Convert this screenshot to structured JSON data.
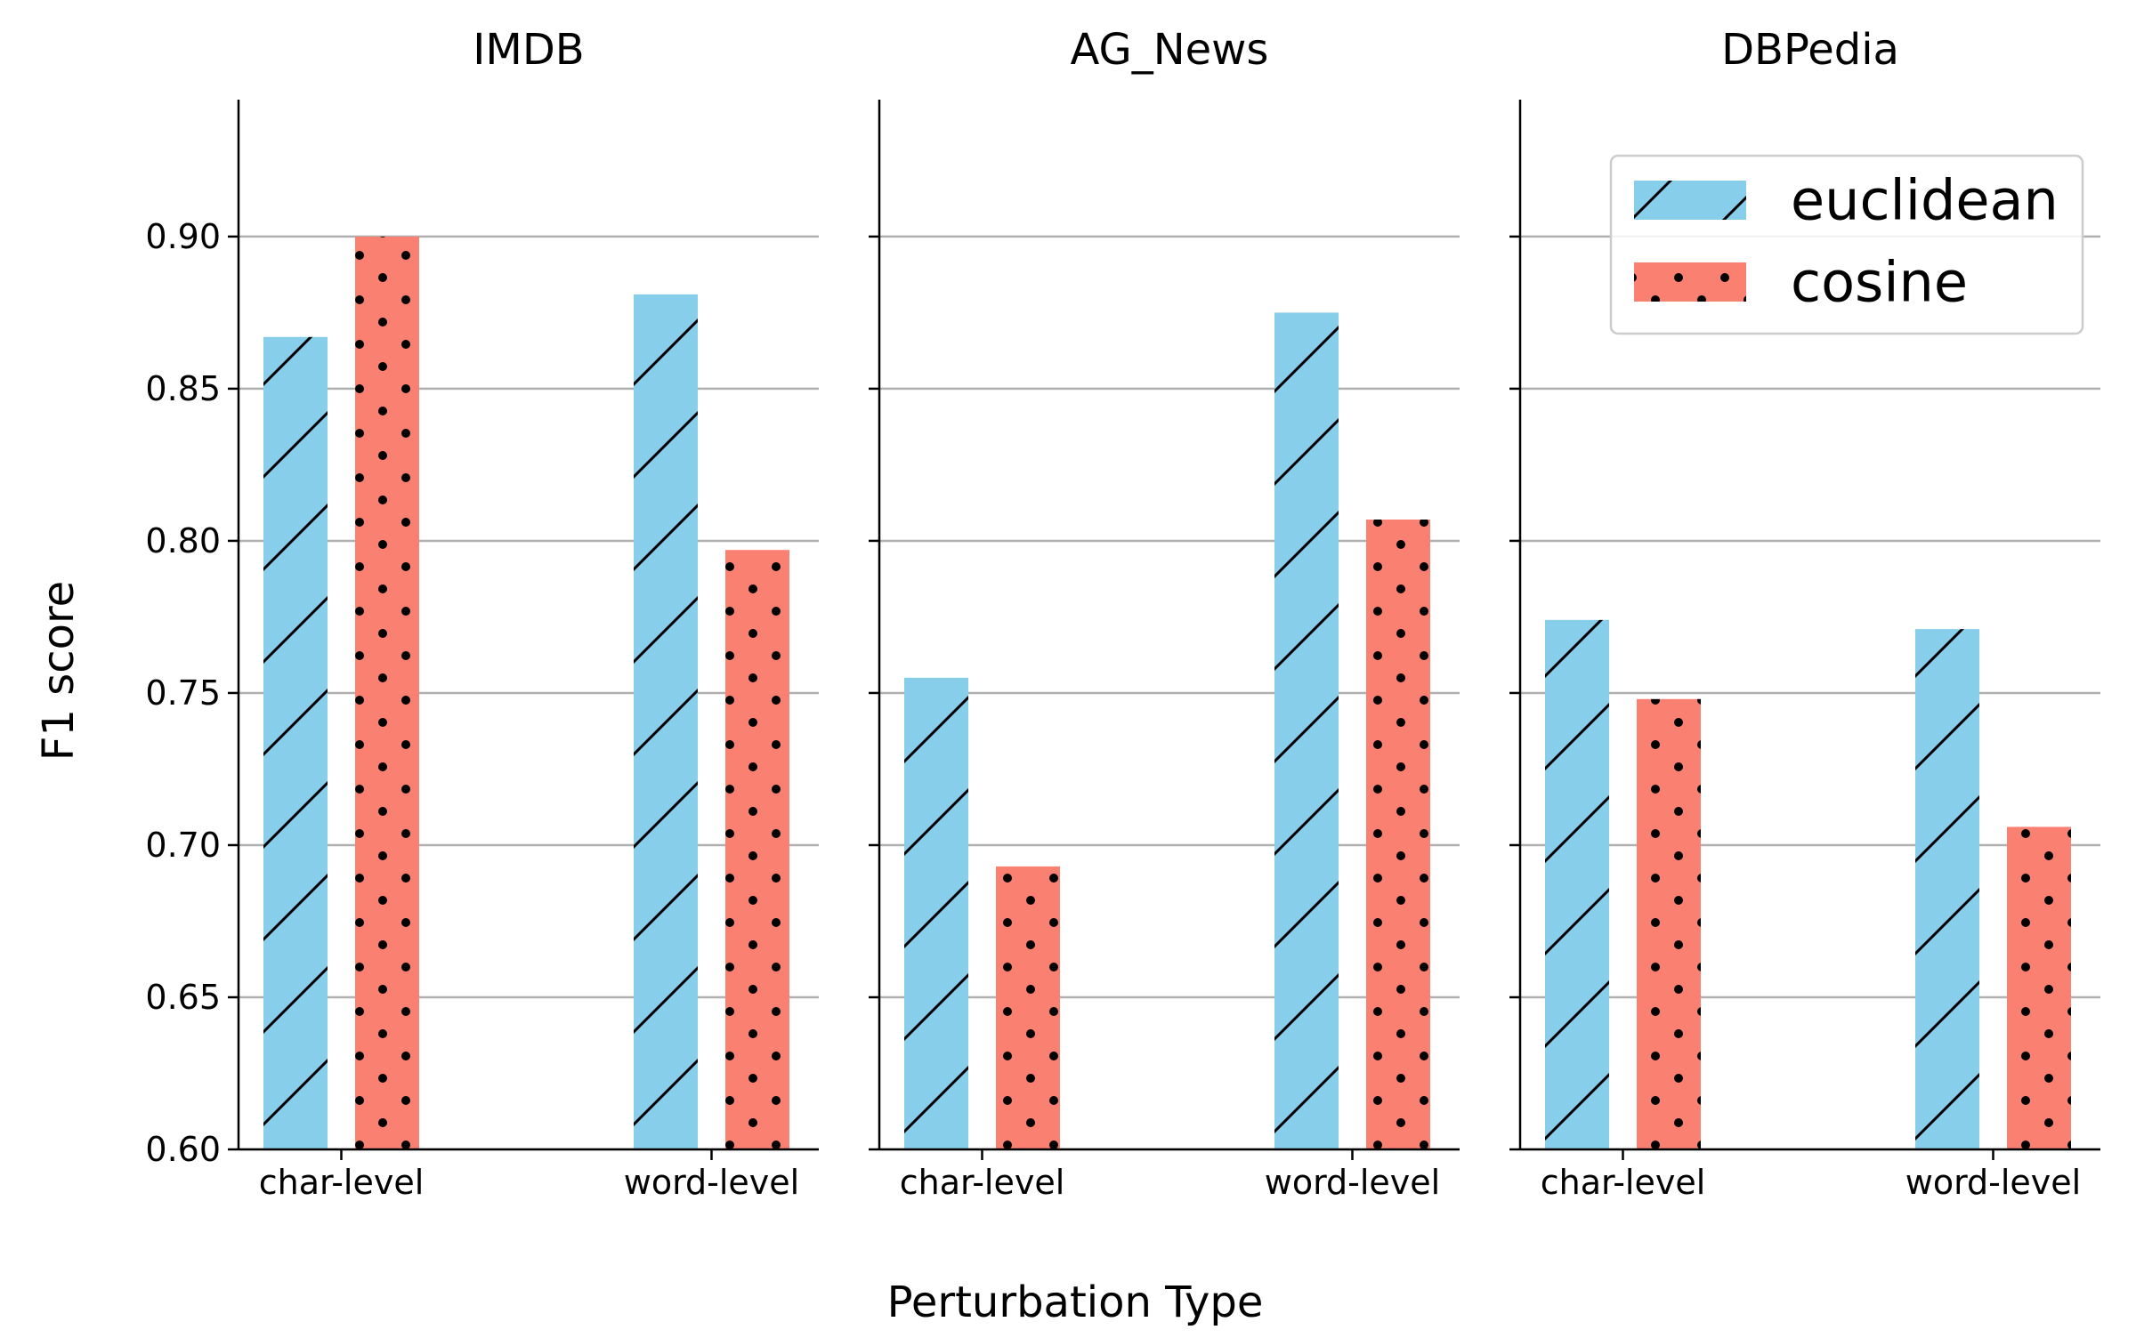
{
  "chart_data": {
    "type": "bar",
    "panels": [
      {
        "title": "IMDB",
        "categories": [
          "char-level",
          "word-level"
        ],
        "series": [
          {
            "name": "euclidean",
            "values": [
              0.867,
              0.881
            ]
          },
          {
            "name": "cosine",
            "values": [
              0.9,
              0.797
            ]
          }
        ]
      },
      {
        "title": "AG_News",
        "categories": [
          "char-level",
          "word-level"
        ],
        "series": [
          {
            "name": "euclidean",
            "values": [
              0.755,
              0.875
            ]
          },
          {
            "name": "cosine",
            "values": [
              0.693,
              0.807
            ]
          }
        ]
      },
      {
        "title": "DBPedia",
        "categories": [
          "char-level",
          "word-level"
        ],
        "series": [
          {
            "name": "euclidean",
            "values": [
              0.774,
              0.771
            ]
          },
          {
            "name": "cosine",
            "values": [
              0.748,
              0.706
            ]
          }
        ]
      }
    ],
    "ylabel": "F1 score",
    "xlabel": "Perturbation Type",
    "ylim": [
      0.6,
      0.945
    ],
    "yticks": [
      "0.60",
      "0.65",
      "0.70",
      "0.75",
      "0.80",
      "0.85",
      "0.90"
    ],
    "ytick_values": [
      0.6,
      0.65,
      0.7,
      0.75,
      0.8,
      0.85,
      0.9
    ],
    "grid": "y",
    "legend": {
      "placement": "top-right",
      "panel": 2
    },
    "colors": {
      "euclidean": "#87CEEB",
      "cosine": "#FA8072",
      "grid": "#b0b0b0"
    },
    "hatches": {
      "euclidean": "diagonal",
      "cosine": "dots"
    }
  }
}
